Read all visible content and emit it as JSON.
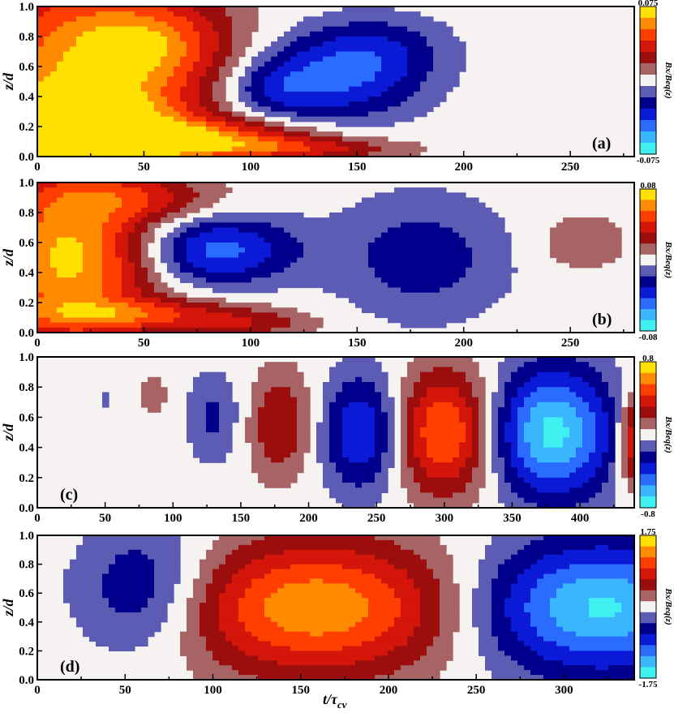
{
  "figure": {
    "xlabel_main": "t/τ",
    "xlabel_sub": "cv",
    "ylabel": "z/d",
    "colorbar_label": "Bx/Beq(z)",
    "background_color": "#f7f2f2"
  },
  "palette": {
    "positive": [
      "#a86464",
      "#9c0e0e",
      "#d3150a",
      "#ff3e00",
      "#ff8a00",
      "#ffe000"
    ],
    "negative": [
      "#5c5cb4",
      "#00008c",
      "#0a1ad6",
      "#2a6cff",
      "#3ab6ff",
      "#40f0f0"
    ]
  },
  "chart_data": [
    {
      "type": "heatmap",
      "panel": "(a)",
      "xlabel": "",
      "ylabel": "z/d",
      "xlim": [
        0,
        280
      ],
      "ylim": [
        0,
        1
      ],
      "xticks": [
        0,
        50,
        100,
        150,
        200,
        250
      ],
      "yticks": [
        0.0,
        0.2,
        0.4,
        0.6,
        0.8,
        1.0
      ],
      "colorbar": {
        "min": -0.075,
        "max": 0.075,
        "min_label": "-0.075",
        "max_label": "0.075",
        "label": "Bx/Beq(z)"
      },
      "blobs": [
        {
          "x": 20,
          "z": 0.55,
          "rx": 55,
          "rz": 0.7,
          "amp": 0.06
        },
        {
          "x": 10,
          "z": 0.15,
          "rx": 50,
          "rz": 0.25,
          "amp": 0.09
        },
        {
          "x": 75,
          "z": 0.12,
          "rx": 55,
          "rz": 0.12,
          "amp": 0.05
        },
        {
          "x": 120,
          "z": 0.05,
          "rx": 50,
          "rz": 0.07,
          "amp": 0.03
        },
        {
          "x": 55,
          "z": 0.75,
          "rx": 35,
          "rz": 0.28,
          "amp": 0.035
        },
        {
          "x": 140,
          "z": 0.52,
          "rx": 38,
          "rz": 0.28,
          "amp": -0.04
        },
        {
          "x": 160,
          "z": 0.72,
          "rx": 32,
          "rz": 0.22,
          "amp": -0.02
        },
        {
          "x": 110,
          "z": 0.45,
          "rx": 22,
          "rz": 0.18,
          "amp": -0.02
        }
      ]
    },
    {
      "type": "heatmap",
      "panel": "(b)",
      "xlabel": "",
      "ylabel": "z/d",
      "xlim": [
        0,
        280
      ],
      "ylim": [
        0,
        1
      ],
      "xticks": [
        0,
        50,
        100,
        150,
        200,
        250
      ],
      "yticks": [
        0.0,
        0.2,
        0.4,
        0.6,
        0.8,
        1.0
      ],
      "colorbar": {
        "min": -0.08,
        "max": 0.08,
        "min_label": "-0.08",
        "max_label": "0.08",
        "label": "Bx/Beq(z)"
      },
      "blobs": [
        {
          "x": 15,
          "z": 0.5,
          "rx": 38,
          "rz": 0.55,
          "amp": 0.075
        },
        {
          "x": 50,
          "z": 0.12,
          "rx": 55,
          "rz": 0.1,
          "amp": 0.04
        },
        {
          "x": 100,
          "z": 0.05,
          "rx": 30,
          "rz": 0.07,
          "amp": 0.02
        },
        {
          "x": 45,
          "z": 0.9,
          "rx": 40,
          "rz": 0.15,
          "amp": 0.03
        },
        {
          "x": 85,
          "z": 0.55,
          "rx": 35,
          "rz": 0.22,
          "amp": -0.05
        },
        {
          "x": 180,
          "z": 0.5,
          "rx": 40,
          "rz": 0.4,
          "amp": -0.025
        },
        {
          "x": 255,
          "z": 0.6,
          "rx": 22,
          "rz": 0.2,
          "amp": 0.015
        }
      ]
    },
    {
      "type": "heatmap",
      "panel": "(c)",
      "xlabel": "",
      "ylabel": "z/d",
      "xlim": [
        0,
        440
      ],
      "ylim": [
        0,
        1
      ],
      "xticks": [
        0,
        50,
        100,
        150,
        200,
        250,
        300,
        350,
        400
      ],
      "yticks": [
        0.0,
        0.2,
        0.4,
        0.6,
        0.8,
        1.0
      ],
      "colorbar": {
        "min": -0.8,
        "max": 0.8,
        "min_label": "-0.8",
        "max_label": "0.8",
        "label": "Bx/Beq(z)"
      },
      "blobs": [
        {
          "x": 50,
          "z": 0.72,
          "rx": 4,
          "rz": 0.06,
          "amp": -0.1
        },
        {
          "x": 85,
          "z": 0.75,
          "rx": 16,
          "rz": 0.18,
          "amp": 0.1
        },
        {
          "x": 130,
          "z": 0.6,
          "rx": 20,
          "rz": 0.3,
          "amp": -0.2
        },
        {
          "x": 180,
          "z": 0.55,
          "rx": 24,
          "rz": 0.35,
          "amp": 0.3
        },
        {
          "x": 240,
          "z": 0.5,
          "rx": 30,
          "rz": 0.38,
          "amp": -0.45
        },
        {
          "x": 300,
          "z": 0.5,
          "rx": 36,
          "rz": 0.4,
          "amp": 0.6
        },
        {
          "x": 380,
          "z": 0.5,
          "rx": 44,
          "rz": 0.42,
          "amp": -0.75
        },
        {
          "x": 440,
          "z": 0.45,
          "rx": 12,
          "rz": 0.3,
          "amp": 0.5
        }
      ]
    },
    {
      "type": "heatmap",
      "panel": "(d)",
      "xlabel": "t/τcv",
      "ylabel": "z/d",
      "xlim": [
        0,
        340
      ],
      "ylim": [
        0,
        1
      ],
      "xticks": [
        0,
        50,
        100,
        150,
        200,
        250,
        300
      ],
      "yticks": [
        0.0,
        0.2,
        0.4,
        0.6,
        0.8,
        1.0
      ],
      "colorbar": {
        "min": -1.75,
        "max": 1.75,
        "min_label": "-1.75",
        "max_label": "1.75",
        "label": "Bx/Beq(z)"
      },
      "blobs": [
        {
          "x": 8,
          "z": 0.9,
          "rx": 12,
          "rz": 0.07,
          "amp": 0.1
        },
        {
          "x": 10,
          "z": 0.25,
          "rx": 6,
          "rz": 0.08,
          "amp": 0.08
        },
        {
          "x": 62,
          "z": 0.62,
          "rx": 40,
          "rz": 0.45,
          "amp": -0.75
        },
        {
          "x": 160,
          "z": 0.5,
          "rx": 80,
          "rz": 0.45,
          "amp": 1.5
        },
        {
          "x": 320,
          "z": 0.5,
          "rx": 70,
          "rz": 0.45,
          "amp": -1.6
        }
      ]
    }
  ]
}
